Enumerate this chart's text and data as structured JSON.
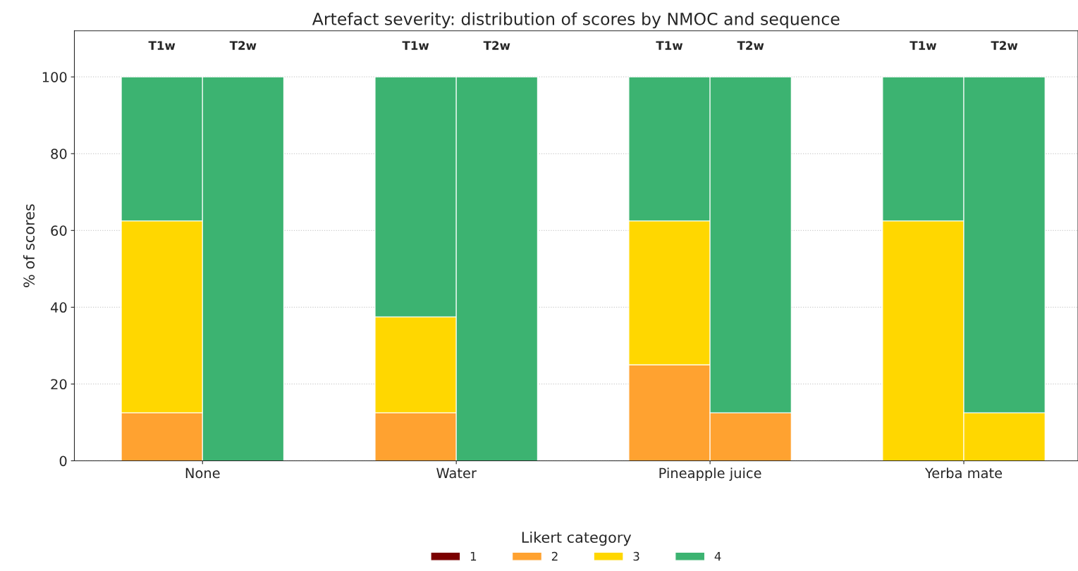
{
  "chart_data": {
    "type": "bar",
    "title": "Artefact severity: distribution of scores by NMOC and sequence",
    "ylabel": "% of scores",
    "legend_title": "Likert category",
    "categories": [
      "T1w",
      "T2w",
      "T1w",
      "T2w",
      "T1w",
      "T2w",
      "T1w",
      "T2w"
    ],
    "annotations": [
      "None",
      "Water",
      "Pineapple juice",
      "Yerba mate"
    ],
    "stacked": true,
    "series": [
      {
        "name": "1",
        "color": "#7b0000",
        "values": [
          0,
          0,
          0,
          0,
          0,
          0,
          0,
          0
        ]
      },
      {
        "name": "2",
        "color": "#ffa230",
        "values": [
          12.5,
          0,
          12.5,
          0,
          25,
          12.5,
          0,
          0
        ]
      },
      {
        "name": "3",
        "color": "#ffd700",
        "values": [
          50,
          0,
          25,
          0,
          37.5,
          0,
          62.5,
          12.5
        ]
      },
      {
        "name": "4",
        "color": "#3cb371",
        "values": [
          37.5,
          100,
          62.5,
          100,
          37.5,
          87.5,
          37.5,
          87.5
        ]
      }
    ],
    "ylim": [
      0,
      112
    ],
    "yticks": [
      0,
      20,
      40,
      60,
      80,
      100
    ],
    "grid": "y",
    "legend": "bottom"
  }
}
